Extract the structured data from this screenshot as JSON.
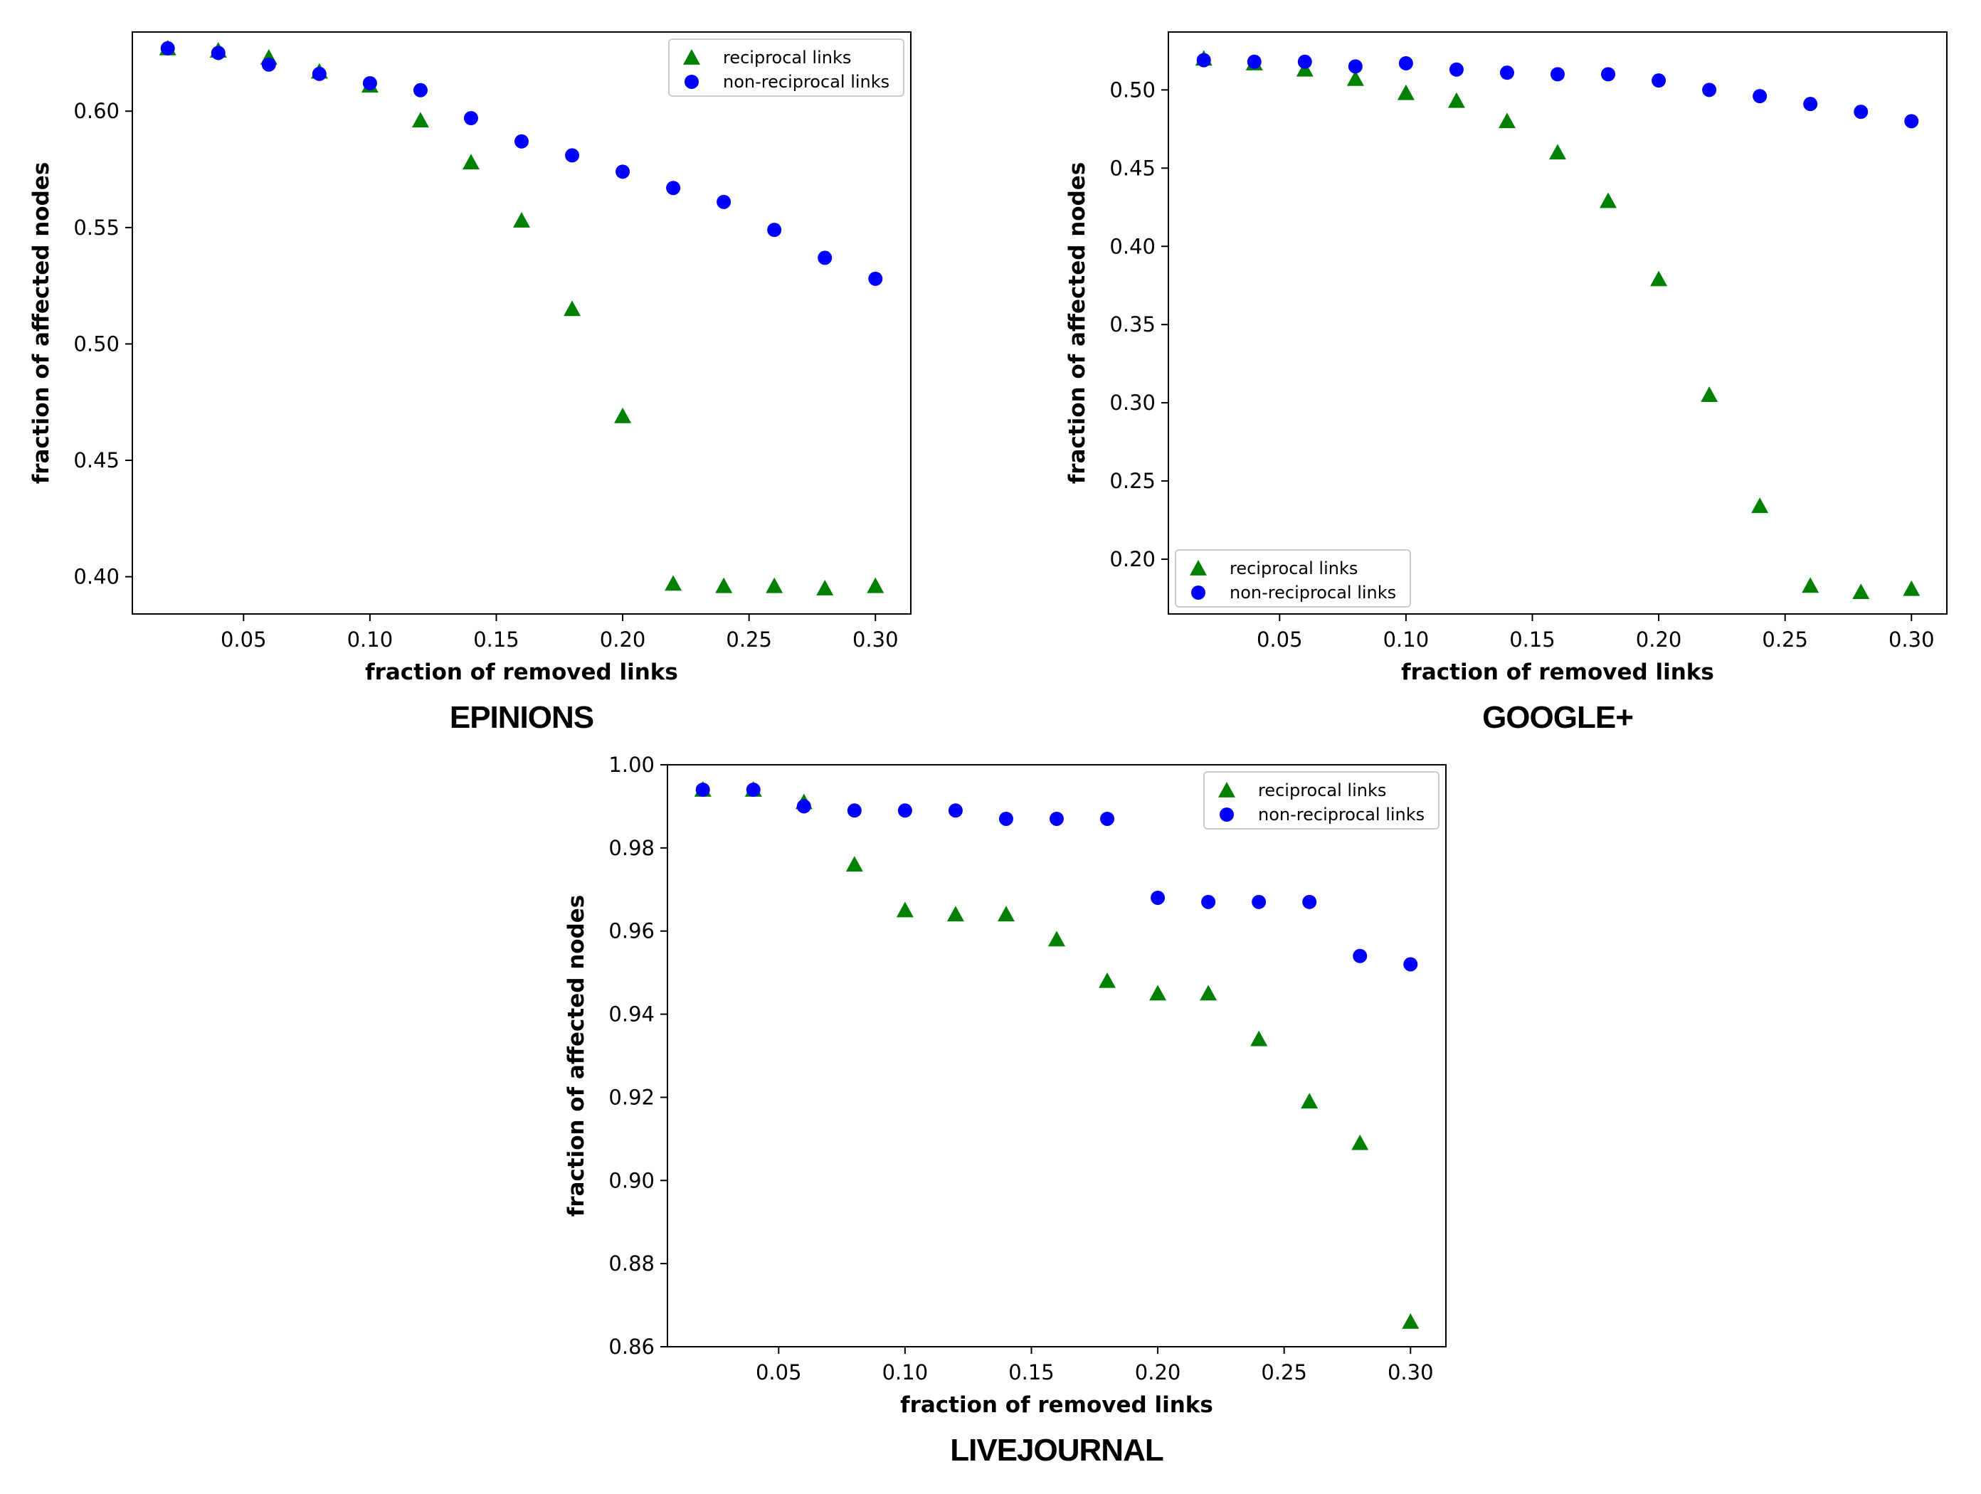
{
  "chart_data": [
    {
      "type": "scatter",
      "title": "EPINIONS",
      "xlabel": "fraction of removed links",
      "ylabel": "fraction of affected nodes",
      "xlim": [
        0.006,
        0.314
      ],
      "ylim": [
        0.384,
        0.634
      ],
      "xticks": [
        0.05,
        0.1,
        0.15,
        0.2,
        0.25,
        0.3
      ],
      "xtick_labels": [
        "0.05",
        "0.10",
        "0.15",
        "0.20",
        "0.25",
        "0.30"
      ],
      "yticks": [
        0.4,
        0.45,
        0.5,
        0.55,
        0.6
      ],
      "ytick_labels": [
        "0.40",
        "0.45",
        "0.50",
        "0.55",
        "0.60"
      ],
      "legend_position": "upper right",
      "x": [
        0.02,
        0.04,
        0.06,
        0.08,
        0.1,
        0.12,
        0.14,
        0.16,
        0.18,
        0.2,
        0.22,
        0.24,
        0.26,
        0.28,
        0.3
      ],
      "series": [
        {
          "name": "reciprocal links",
          "marker": "triangle",
          "color": "#008000",
          "values": [
            0.627,
            0.626,
            0.623,
            0.617,
            0.611,
            0.596,
            0.578,
            0.553,
            0.515,
            0.469,
            0.397,
            0.396,
            0.396,
            0.395,
            0.396
          ]
        },
        {
          "name": "non-reciprocal links",
          "marker": "circle",
          "color": "#0000ff",
          "values": [
            0.627,
            0.625,
            0.62,
            0.616,
            0.612,
            0.609,
            0.597,
            0.587,
            0.581,
            0.574,
            0.567,
            0.561,
            0.549,
            0.537,
            0.528
          ]
        }
      ]
    },
    {
      "type": "scatter",
      "title": "GOOGLE+",
      "xlabel": "fraction of removed links",
      "ylabel": "fraction of affected nodes",
      "xlim": [
        0.006,
        0.314
      ],
      "ylim": [
        0.165,
        0.537
      ],
      "xticks": [
        0.05,
        0.1,
        0.15,
        0.2,
        0.25,
        0.3
      ],
      "xtick_labels": [
        "0.05",
        "0.10",
        "0.15",
        "0.20",
        "0.25",
        "0.30"
      ],
      "yticks": [
        0.2,
        0.25,
        0.3,
        0.35,
        0.4,
        0.45,
        0.5
      ],
      "ytick_labels": [
        "0.20",
        "0.25",
        "0.30",
        "0.35",
        "0.40",
        "0.45",
        "0.50"
      ],
      "legend_position": "lower left",
      "x": [
        0.02,
        0.04,
        0.06,
        0.08,
        0.1,
        0.12,
        0.14,
        0.16,
        0.18,
        0.2,
        0.22,
        0.24,
        0.26,
        0.28,
        0.3
      ],
      "series": [
        {
          "name": "reciprocal links",
          "marker": "triangle",
          "color": "#008000",
          "values": [
            0.52,
            0.517,
            0.513,
            0.507,
            0.498,
            0.493,
            0.48,
            0.46,
            0.429,
            0.379,
            0.305,
            0.234,
            0.183,
            0.179,
            0.181
          ]
        },
        {
          "name": "non-reciprocal links",
          "marker": "circle",
          "color": "#0000ff",
          "values": [
            0.519,
            0.518,
            0.518,
            0.515,
            0.517,
            0.513,
            0.511,
            0.51,
            0.51,
            0.506,
            0.5,
            0.496,
            0.491,
            0.486,
            0.48
          ]
        }
      ]
    },
    {
      "type": "scatter",
      "title": "LIVEJOURNAL",
      "xlabel": "fraction of removed links",
      "ylabel": "fraction of affected nodes",
      "xlim": [
        0.006,
        0.314
      ],
      "ylim": [
        0.86,
        1.0
      ],
      "xticks": [
        0.05,
        0.1,
        0.15,
        0.2,
        0.25,
        0.3
      ],
      "xtick_labels": [
        "0.05",
        "0.10",
        "0.15",
        "0.20",
        "0.25",
        "0.30"
      ],
      "yticks": [
        0.86,
        0.88,
        0.9,
        0.92,
        0.94,
        0.96,
        0.98,
        1.0
      ],
      "ytick_labels": [
        "0.86",
        "0.88",
        "0.90",
        "0.92",
        "0.94",
        "0.96",
        "0.98",
        "1.00"
      ],
      "legend_position": "upper right",
      "x": [
        0.02,
        0.04,
        0.06,
        0.08,
        0.1,
        0.12,
        0.14,
        0.16,
        0.18,
        0.2,
        0.22,
        0.24,
        0.26,
        0.28,
        0.3
      ],
      "series": [
        {
          "name": "reciprocal links",
          "marker": "triangle",
          "color": "#008000",
          "values": [
            0.994,
            0.994,
            0.991,
            0.976,
            0.965,
            0.964,
            0.964,
            0.958,
            0.948,
            0.945,
            0.945,
            0.934,
            0.919,
            0.909,
            0.866
          ]
        },
        {
          "name": "non-reciprocal links",
          "marker": "circle",
          "color": "#0000ff",
          "values": [
            0.994,
            0.994,
            0.99,
            0.989,
            0.989,
            0.989,
            0.987,
            0.987,
            0.987,
            0.968,
            0.967,
            0.967,
            0.967,
            0.954,
            0.952
          ]
        }
      ]
    }
  ]
}
